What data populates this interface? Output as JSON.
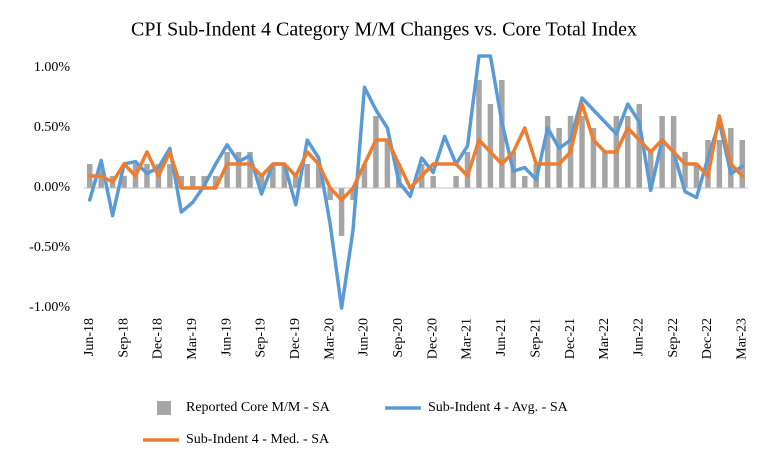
{
  "chart_data": {
    "type": "combo",
    "title": "CPI Sub-Indent 4 Category M/M  Changes vs. Core Total Index",
    "categories": [
      "Jun-18",
      null,
      null,
      "Sep-18",
      null,
      null,
      "Dec-18",
      null,
      null,
      "Mar-19",
      null,
      null,
      "Jun-19",
      null,
      null,
      "Sep-19",
      null,
      null,
      "Dec-19",
      null,
      null,
      "Mar-20",
      null,
      null,
      "Jun-20",
      null,
      null,
      "Sep-20",
      null,
      null,
      "Dec-20",
      null,
      null,
      "Mar-21",
      null,
      null,
      "Jun-21",
      null,
      null,
      "Sep-21",
      null,
      null,
      "Dec-21",
      null,
      null,
      "Mar-22",
      null,
      null,
      "Jun-22",
      null,
      null,
      "Sep-22",
      null,
      null,
      "Dec-22",
      null,
      null,
      "Mar-23"
    ],
    "series": [
      {
        "name": "Reported Core M/M - SA",
        "type": "bar",
        "color": "#a5a5a5",
        "values": [
          0.2,
          0.2,
          0.1,
          0.1,
          0.2,
          0.2,
          0.2,
          0.2,
          0.1,
          0.1,
          0.1,
          0.1,
          0.3,
          0.3,
          0.3,
          0.1,
          0.2,
          0.2,
          0.1,
          0.2,
          0.2,
          -0.1,
          -0.4,
          -0.1,
          0.2,
          0.6,
          0.4,
          0.2,
          0.0,
          0.2,
          0.1,
          0.0,
          0.1,
          0.3,
          0.9,
          0.7,
          0.9,
          0.3,
          0.1,
          0.2,
          0.6,
          0.5,
          0.6,
          0.6,
          0.5,
          0.3,
          0.6,
          0.6,
          0.7,
          0.3,
          0.6,
          0.6,
          0.3,
          0.2,
          0.4,
          0.4,
          0.5,
          0.4
        ]
      },
      {
        "name": "Sub-Indent 4 - Avg. - SA",
        "type": "line",
        "color": "#5b9bd5",
        "values": [
          -0.1,
          0.23,
          -0.23,
          0.2,
          0.22,
          0.12,
          0.17,
          0.33,
          -0.2,
          -0.12,
          0.02,
          0.2,
          0.36,
          0.22,
          0.27,
          -0.05,
          0.2,
          0.2,
          -0.14,
          0.4,
          0.25,
          -0.3,
          -1.0,
          -0.35,
          0.84,
          0.65,
          0.5,
          0.05,
          -0.07,
          0.25,
          0.13,
          0.43,
          0.2,
          0.35,
          1.1,
          1.1,
          0.55,
          0.14,
          0.17,
          0.07,
          0.5,
          0.33,
          0.4,
          0.75,
          0.65,
          0.55,
          0.45,
          0.7,
          0.55,
          -0.02,
          0.4,
          0.3,
          -0.03,
          -0.08,
          0.25,
          0.55,
          0.12,
          0.18
        ]
      },
      {
        "name": "Sub-Indent 4 - Med. - SA",
        "type": "line",
        "color": "#ed7d31",
        "values": [
          0.1,
          0.1,
          0.05,
          0.2,
          0.1,
          0.3,
          0.1,
          0.3,
          0.0,
          0.0,
          0.0,
          0.0,
          0.2,
          0.2,
          0.2,
          0.1,
          0.2,
          0.2,
          0.1,
          0.3,
          0.2,
          0.0,
          -0.1,
          0.0,
          0.2,
          0.4,
          0.4,
          0.2,
          0.0,
          0.1,
          0.2,
          0.2,
          0.2,
          0.1,
          0.4,
          0.3,
          0.2,
          0.3,
          0.5,
          0.2,
          0.2,
          0.2,
          0.3,
          0.7,
          0.4,
          0.3,
          0.3,
          0.5,
          0.4,
          0.3,
          0.4,
          0.3,
          0.2,
          0.2,
          0.1,
          0.6,
          0.2,
          0.1
        ]
      }
    ],
    "ylim": [
      -1,
      1
    ],
    "yticks": [
      {
        "value": -1,
        "label": "-1.00%"
      },
      {
        "value": -0.5,
        "label": "-0.50%"
      },
      {
        "value": 0,
        "label": "0.00%"
      },
      {
        "value": 0.5,
        "label": "0.50%"
      },
      {
        "value": 1,
        "label": "1.00%"
      }
    ],
    "grid": false,
    "legend": "bottom"
  }
}
